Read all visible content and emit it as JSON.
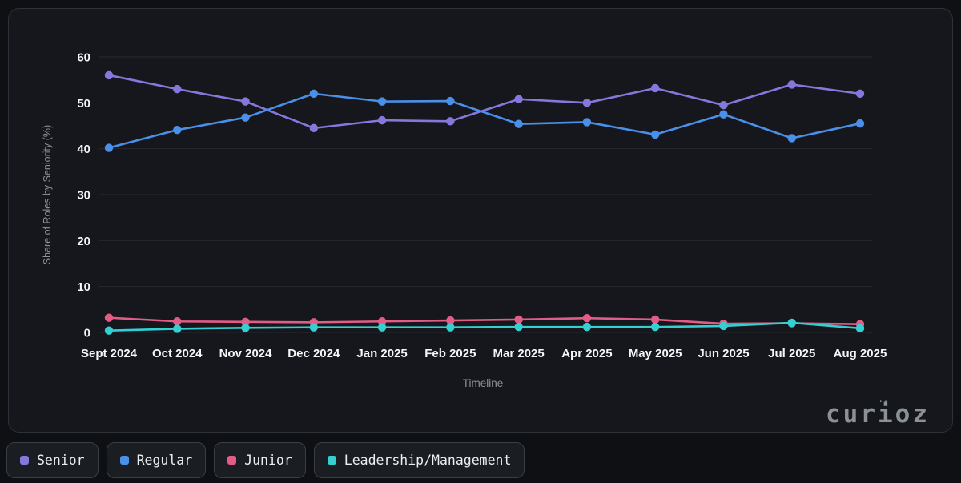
{
  "brand": {
    "logo_text": "curioz",
    "sparkle": "..",
    "color": "#8b9198"
  },
  "axes": {
    "ylabel": "Share of Roles by Seniority (%)",
    "xlabel": "Timeline",
    "yticks": [
      0,
      10,
      20,
      30,
      40,
      50,
      60
    ],
    "ylim": [
      0,
      60
    ]
  },
  "chart_data": {
    "type": "line",
    "title": "",
    "xlabel": "Timeline",
    "ylabel": "Share of Roles by Seniority (%)",
    "ylim": [
      0,
      60
    ],
    "grid": true,
    "legend_position": "bottom-left",
    "categories": [
      "Sept 2024",
      "Oct 2024",
      "Nov 2024",
      "Dec 2024",
      "Jan 2025",
      "Feb 2025",
      "Mar 2025",
      "Apr 2025",
      "May 2025",
      "Jun 2025",
      "Jul 2025",
      "Aug 2025"
    ],
    "series": [
      {
        "name": "Senior",
        "color": "#8578dd",
        "values": [
          56,
          53,
          50.3,
          44.5,
          46.2,
          46,
          50.8,
          50,
          53.2,
          49.5,
          54,
          52
        ]
      },
      {
        "name": "Regular",
        "color": "#4a8fe8",
        "values": [
          40.2,
          44.1,
          46.8,
          52,
          50.3,
          50.4,
          45.4,
          45.8,
          43.1,
          47.5,
          42.3,
          45.5
        ]
      },
      {
        "name": "Junior",
        "color": "#e25c87",
        "values": [
          3.2,
          2.4,
          2.3,
          2.2,
          2.4,
          2.6,
          2.8,
          3.1,
          2.8,
          1.9,
          2,
          1.8
        ]
      },
      {
        "name": "Leadership/Management",
        "color": "#35cfd2",
        "values": [
          0.4,
          0.8,
          1,
          1.1,
          1.1,
          1.1,
          1.2,
          1.2,
          1.2,
          1.4,
          2.1,
          0.9
        ]
      }
    ]
  },
  "style": {
    "grid_color": "#26292f",
    "tick_color": "#f5f6f7",
    "axis_title_color": "#8b9199"
  }
}
